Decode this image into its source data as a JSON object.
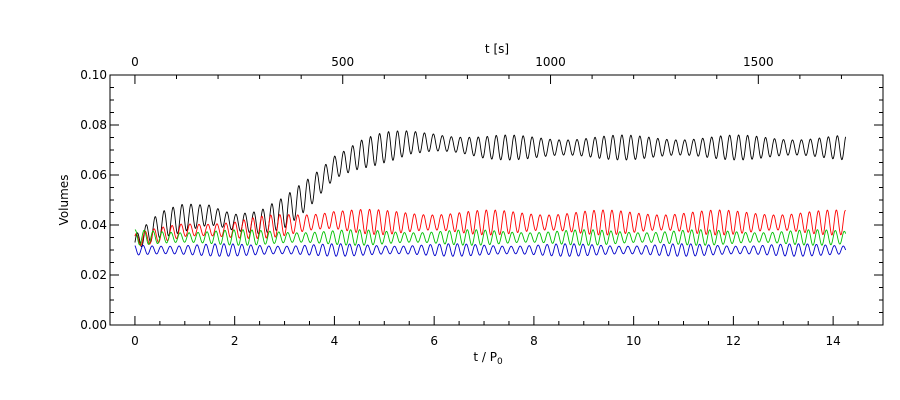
{
  "chart_data": {
    "type": "line",
    "ylabel": "Volumes",
    "xlabel_bottom": {
      "main": "t / P",
      "sub": "0"
    },
    "xlabel_top": "t [s]",
    "xlim": [
      -0.5,
      15.0
    ],
    "ylim": [
      0.0,
      0.1
    ],
    "x_ticks": [
      0,
      2,
      4,
      6,
      8,
      10,
      12,
      14
    ],
    "x_tick_labels": [
      "0",
      "2",
      "4",
      "6",
      "8",
      "10",
      "12",
      "14"
    ],
    "y_ticks": [
      0.0,
      0.02,
      0.04,
      0.06,
      0.08,
      0.1
    ],
    "y_tick_labels": [
      "0.00",
      "0.02",
      "0.04",
      "0.06",
      "0.08",
      "0.10"
    ],
    "top_axis_seconds_per_unit": 120,
    "top_ticks": [
      0,
      500,
      1000,
      1500
    ],
    "top_tick_labels": [
      "0",
      "500",
      "1000",
      "1500"
    ],
    "grid": false,
    "oscillation_period": 0.18,
    "series": [
      {
        "color": "#000000",
        "x": [
          0.0,
          0.5,
          1.0,
          1.5,
          2.0,
          2.5,
          3.0,
          3.5,
          4.0,
          4.5,
          5.0,
          5.5,
          6.0,
          6.5,
          7.0,
          8.0,
          9.0,
          10.0,
          11.0,
          12.0,
          13.0,
          14.0,
          14.25
        ],
        "mean": [
          0.033,
          0.04,
          0.043,
          0.044,
          0.041,
          0.041,
          0.045,
          0.053,
          0.063,
          0.068,
          0.071,
          0.073,
          0.073,
          0.072,
          0.071,
          0.071,
          0.071,
          0.071,
          0.071,
          0.071,
          0.071,
          0.071,
          0.071
        ],
        "amp": [
          0.003,
          0.004,
          0.005,
          0.005,
          0.004,
          0.004,
          0.005,
          0.006,
          0.006,
          0.006,
          0.005,
          0.004,
          0.004,
          0.004,
          0.004,
          0.004,
          0.004,
          0.004,
          0.004,
          0.004,
          0.004,
          0.004,
          0.004
        ]
      },
      {
        "color": "#ff0000",
        "x": [
          0.0,
          1.0,
          2.0,
          3.0,
          4.0,
          5.0,
          6.0,
          14.25
        ],
        "mean": [
          0.034,
          0.038,
          0.038,
          0.04,
          0.042,
          0.041,
          0.041,
          0.041
        ],
        "amp": [
          0.002,
          0.003,
          0.003,
          0.004,
          0.004,
          0.004,
          0.004,
          0.004
        ]
      },
      {
        "color": "#00c000",
        "x": [
          0.0,
          14.25
        ],
        "mean": [
          0.035,
          0.035
        ],
        "amp": [
          0.0025,
          0.0025
        ]
      },
      {
        "color": "#0000cc",
        "x": [
          0.0,
          14.25
        ],
        "mean": [
          0.03,
          0.03
        ],
        "amp": [
          0.002,
          0.002
        ]
      }
    ]
  }
}
